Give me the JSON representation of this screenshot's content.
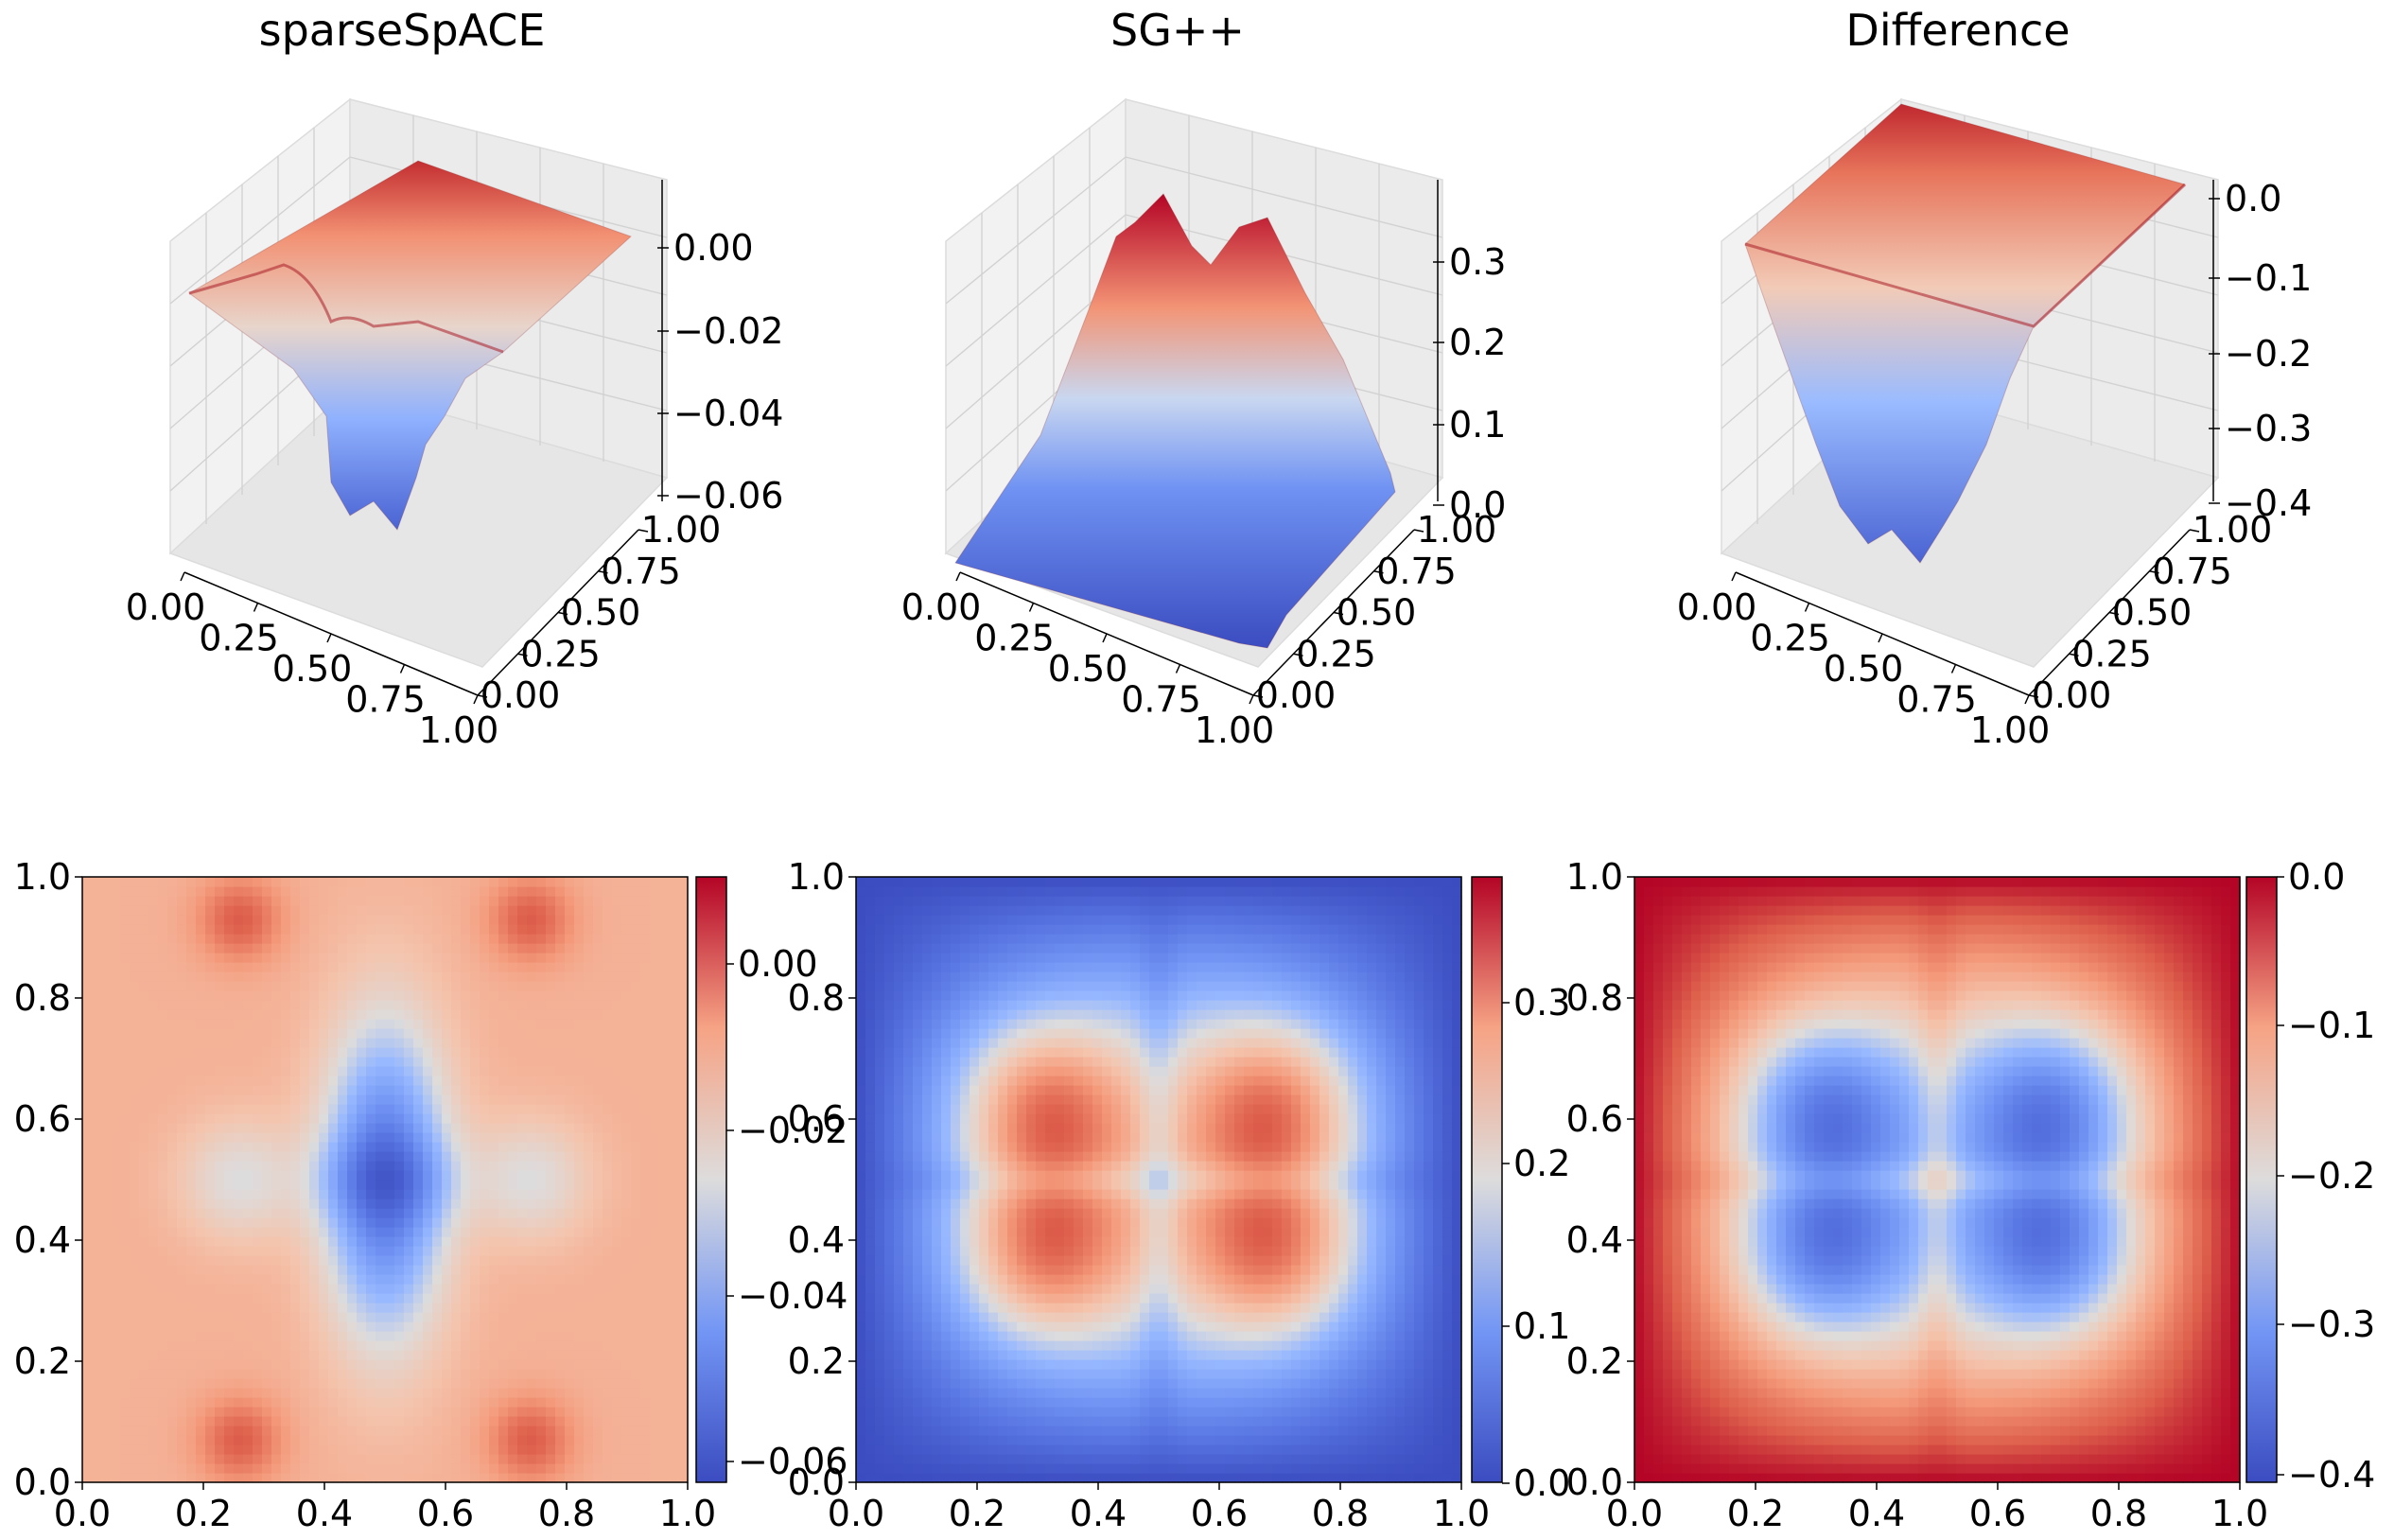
{
  "chart_data": [
    {
      "type": "surface",
      "title": "sparseSpACE",
      "x_ticks": [
        "0.00",
        "0.25",
        "0.50",
        "0.75",
        "1.00"
      ],
      "y_ticks": [
        "0.00",
        "0.25",
        "0.50",
        "0.75",
        "1.00"
      ],
      "z_ticks": [
        "0.00",
        "−0.02",
        "−0.04",
        "−0.06"
      ],
      "xlim": [
        0,
        1
      ],
      "ylim": [
        0,
        1
      ],
      "zlim": [
        -0.062,
        0.012
      ],
      "colormap": "coolwarm",
      "grid": true
    },
    {
      "type": "surface",
      "title": "SG++",
      "x_ticks": [
        "0.00",
        "0.25",
        "0.50",
        "0.75",
        "1.00"
      ],
      "y_ticks": [
        "0.00",
        "0.25",
        "0.50",
        "0.75",
        "1.00"
      ],
      "z_ticks": [
        "0.0",
        "0.1",
        "0.2",
        "0.3"
      ],
      "xlim": [
        0,
        1
      ],
      "ylim": [
        0,
        1
      ],
      "zlim": [
        0,
        0.38
      ],
      "colormap": "coolwarm",
      "grid": true
    },
    {
      "type": "surface",
      "title": "Difference",
      "x_ticks": [
        "0.00",
        "0.25",
        "0.50",
        "0.75",
        "1.00"
      ],
      "y_ticks": [
        "0.00",
        "0.25",
        "0.50",
        "0.75",
        "1.00"
      ],
      "z_ticks": [
        "0.0",
        "−0.1",
        "−0.2",
        "−0.3",
        "−0.4"
      ],
      "xlim": [
        0,
        1
      ],
      "ylim": [
        0,
        1
      ],
      "zlim": [
        -0.4,
        0.0
      ],
      "colormap": "coolwarm",
      "grid": true
    },
    {
      "type": "heatmap",
      "x_ticks": [
        "0.0",
        "0.2",
        "0.4",
        "0.6",
        "0.8",
        "1.0"
      ],
      "y_ticks": [
        "0.0",
        "0.2",
        "0.4",
        "0.6",
        "0.8",
        "1.0"
      ],
      "colorbar_ticks": [
        "0.00",
        "−0.02",
        "−0.04",
        "−0.06"
      ],
      "colorbar_range": [
        -0.065,
        0.008
      ],
      "colormap": "coolwarm"
    },
    {
      "type": "heatmap",
      "x_ticks": [
        "0.0",
        "0.2",
        "0.4",
        "0.6",
        "0.8",
        "1.0"
      ],
      "y_ticks": [
        "0.0",
        "0.2",
        "0.4",
        "0.6",
        "0.8",
        "1.0"
      ],
      "colorbar_ticks": [
        "0.0",
        "0.1",
        "0.2",
        "0.3"
      ],
      "colorbar_range": [
        0.0,
        0.38
      ],
      "colormap": "coolwarm"
    },
    {
      "type": "heatmap",
      "x_ticks": [
        "0.0",
        "0.2",
        "0.4",
        "0.6",
        "0.8",
        "1.0"
      ],
      "y_ticks": [
        "0.0",
        "0.2",
        "0.4",
        "0.6",
        "0.8",
        "1.0"
      ],
      "colorbar_ticks": [
        "0.0",
        "−0.1",
        "−0.2",
        "−0.3",
        "−0.4"
      ],
      "colorbar_range": [
        -0.42,
        0.0
      ],
      "colormap": "coolwarm"
    }
  ]
}
